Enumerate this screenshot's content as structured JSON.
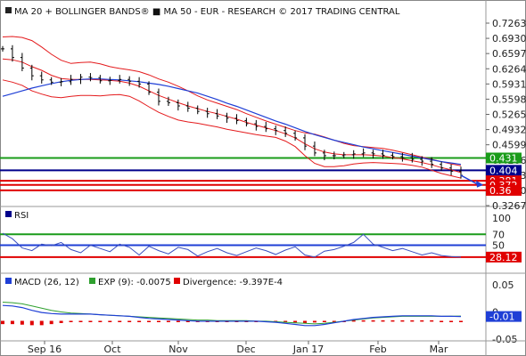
{
  "colors": {
    "price": "#000000",
    "bollinger": "#e41a1c",
    "ma50": "#1f3fd6",
    "resistance": "#1a9c1a",
    "pivot": "#00008b",
    "support": "#e00000",
    "rsi": "#3a4fbf",
    "macd": "#1f3fd6",
    "signal": "#2fa02f",
    "divergence": "#e00000",
    "arrow": "#1f3fd6"
  },
  "header": {
    "main_legend": "MA 20 + BOLLINGER BANDS®  ■ MA 50 - EUR - RESEARCH © 2017 TRADING CENTRAL",
    "rsi_legend": "RSI",
    "macd_legend": "MACD (26, 12)",
    "exp_legend": "EXP (9): -0.0075",
    "div_legend": "Divergence: -9.397E-4"
  },
  "chart_data": [
    {
      "type": "line",
      "panel": "price",
      "y_ticks": [
        "0.7263",
        "0.6930",
        "0.6597",
        "0.6264",
        "0.5931",
        "0.5598",
        "0.5265",
        "0.4932",
        "0.4599",
        "0.4266",
        "0.3933",
        "0.3600",
        "0.3267"
      ],
      "x_ticks": [
        "Sep 16",
        "Oct",
        "Nov",
        "Dec",
        "Jan 17",
        "Feb",
        "Mar"
      ],
      "ylim": [
        0.3267,
        0.7263
      ],
      "levels": [
        {
          "label": "0.431",
          "value": 0.431,
          "role": "resistance"
        },
        {
          "label": "0.404",
          "value": 0.404,
          "role": "pivot"
        },
        {
          "label": "0.381",
          "value": 0.381,
          "role": "support"
        },
        {
          "label": "0.372",
          "value": 0.372,
          "role": "support"
        },
        {
          "label": "0.36",
          "value": 0.36,
          "role": "support"
        }
      ],
      "series": [
        {
          "role": "close",
          "values": [
            0.67,
            0.651,
            0.628,
            0.611,
            0.602,
            0.597,
            0.598,
            0.603,
            0.608,
            0.607,
            0.6,
            0.601,
            0.603,
            0.599,
            0.593,
            0.575,
            0.555,
            0.552,
            0.545,
            0.54,
            0.533,
            0.528,
            0.523,
            0.518,
            0.513,
            0.506,
            0.5,
            0.495,
            0.491,
            0.485,
            0.475,
            0.457,
            0.442,
            0.436,
            0.436,
            0.438,
            0.44,
            0.442,
            0.44,
            0.437,
            0.434,
            0.432,
            0.428,
            0.424,
            0.417,
            0.409,
            0.402,
            0.393
          ]
        },
        {
          "role": "ma20",
          "values": [
            0.648,
            0.646,
            0.641,
            0.631,
            0.623,
            0.612,
            0.605,
            0.603,
            0.603,
            0.603,
            0.602,
            0.601,
            0.599,
            0.595,
            0.588,
            0.578,
            0.568,
            0.56,
            0.552,
            0.545,
            0.539,
            0.533,
            0.528,
            0.522,
            0.516,
            0.509,
            0.503,
            0.497,
            0.491,
            0.484,
            0.475,
            0.462,
            0.451,
            0.444,
            0.44,
            0.438,
            0.438,
            0.438,
            0.437,
            0.435,
            0.432,
            0.429,
            0.425,
            0.421,
            0.416,
            0.41,
            0.405,
            0.399
          ]
        },
        {
          "role": "bb_upper",
          "values": [
            0.696,
            0.697,
            0.695,
            0.688,
            0.674,
            0.658,
            0.645,
            0.638,
            0.64,
            0.641,
            0.637,
            0.631,
            0.627,
            0.624,
            0.62,
            0.613,
            0.604,
            0.597,
            0.588,
            0.578,
            0.567,
            0.558,
            0.551,
            0.544,
            0.537,
            0.528,
            0.52,
            0.512,
            0.505,
            0.498,
            0.491,
            0.486,
            0.483,
            0.477,
            0.47,
            0.463,
            0.458,
            0.456,
            0.454,
            0.452,
            0.448,
            0.443,
            0.438,
            0.433,
            0.428,
            0.423,
            0.418,
            0.414
          ]
        },
        {
          "role": "bb_lower",
          "values": [
            0.602,
            0.597,
            0.59,
            0.578,
            0.571,
            0.565,
            0.563,
            0.566,
            0.568,
            0.568,
            0.567,
            0.569,
            0.57,
            0.566,
            0.556,
            0.543,
            0.531,
            0.522,
            0.514,
            0.51,
            0.507,
            0.503,
            0.499,
            0.494,
            0.49,
            0.486,
            0.482,
            0.479,
            0.476,
            0.468,
            0.456,
            0.436,
            0.419,
            0.412,
            0.412,
            0.414,
            0.418,
            0.42,
            0.421,
            0.42,
            0.419,
            0.418,
            0.415,
            0.411,
            0.404,
            0.397,
            0.392,
            0.387
          ]
        },
        {
          "role": "ma50",
          "values": [
            0.566,
            0.572,
            0.578,
            0.584,
            0.589,
            0.594,
            0.598,
            0.601,
            0.603,
            0.604,
            0.604,
            0.603,
            0.602,
            0.6,
            0.598,
            0.595,
            0.592,
            0.588,
            0.583,
            0.578,
            0.573,
            0.566,
            0.559,
            0.551,
            0.544,
            0.536,
            0.528,
            0.52,
            0.512,
            0.505,
            0.497,
            0.489,
            0.482,
            0.476,
            0.47,
            0.465,
            0.46,
            0.455,
            0.451,
            0.447,
            0.443,
            0.439,
            0.435,
            0.431,
            0.427,
            0.423,
            0.42,
            0.417
          ]
        }
      ]
    },
    {
      "type": "line",
      "panel": "rsi",
      "y_ticks": [
        "100",
        "70",
        "50",
        "28.12"
      ],
      "ylim": [
        0,
        100
      ],
      "levels": [
        {
          "label": "70",
          "value": 70,
          "role": "overbought"
        },
        {
          "label": "50",
          "value": 50,
          "role": "mid"
        },
        {
          "label": "28.12",
          "value": 28.12,
          "role": "current"
        }
      ],
      "series": [
        {
          "role": "rsi",
          "values": [
            72,
            62,
            45,
            40,
            52,
            49,
            55,
            42,
            36,
            50,
            44,
            38,
            52,
            46,
            32,
            48,
            40,
            34,
            46,
            42,
            30,
            38,
            44,
            36,
            31,
            38,
            45,
            40,
            33,
            41,
            47,
            32,
            28,
            39,
            42,
            48,
            55,
            70,
            52,
            46,
            40,
            44,
            38,
            32,
            36,
            31,
            29,
            28
          ]
        }
      ]
    },
    {
      "type": "line",
      "panel": "macd",
      "y_ticks": [
        "0.05",
        "0",
        "-0.01",
        "-0.05"
      ],
      "ylim": [
        -0.05,
        0.05
      ],
      "levels": [
        {
          "label": "-0.01",
          "value": -0.0084,
          "role": "current"
        }
      ],
      "series": [
        {
          "role": "macd",
          "values": [
            0.012,
            0.011,
            0.008,
            0.003,
            -0.001,
            -0.003,
            -0.004,
            -0.004,
            -0.004,
            -0.004,
            -0.005,
            -0.006,
            -0.007,
            -0.008,
            -0.01,
            -0.012,
            -0.013,
            -0.014,
            -0.015,
            -0.016,
            -0.017,
            -0.017,
            -0.017,
            -0.017,
            -0.017,
            -0.017,
            -0.017,
            -0.018,
            -0.019,
            -0.021,
            -0.023,
            -0.025,
            -0.025,
            -0.023,
            -0.02,
            -0.017,
            -0.014,
            -0.012,
            -0.01,
            -0.009,
            -0.008,
            -0.007,
            -0.007,
            -0.007,
            -0.007,
            -0.008,
            -0.008,
            -0.0084
          ]
        },
        {
          "role": "signal",
          "values": [
            0.018,
            0.017,
            0.015,
            0.011,
            0.007,
            0.003,
            0.0,
            -0.002,
            -0.003,
            -0.004,
            -0.005,
            -0.006,
            -0.007,
            -0.008,
            -0.009,
            -0.01,
            -0.011,
            -0.012,
            -0.013,
            -0.014,
            -0.015,
            -0.015,
            -0.016,
            -0.016,
            -0.016,
            -0.016,
            -0.017,
            -0.017,
            -0.018,
            -0.019,
            -0.02,
            -0.021,
            -0.022,
            -0.021,
            -0.019,
            -0.017,
            -0.015,
            -0.013,
            -0.011,
            -0.01,
            -0.009,
            -0.008,
            -0.008,
            -0.008,
            -0.008,
            -0.008,
            -0.0078,
            -0.0075
          ]
        },
        {
          "role": "divergence",
          "values": [
            -0.006,
            -0.006,
            -0.007,
            -0.008,
            -0.008,
            -0.006,
            -0.004,
            -0.002,
            -0.001,
            0.0,
            0.0,
            0.0,
            0.0,
            0.0,
            -0.001,
            -0.002,
            -0.002,
            -0.002,
            -0.002,
            -0.002,
            -0.002,
            -0.002,
            -0.001,
            -0.001,
            -0.001,
            -0.001,
            0.0,
            -0.001,
            -0.001,
            -0.002,
            -0.003,
            -0.004,
            -0.003,
            -0.002,
            -0.001,
            0.0,
            0.001,
            0.001,
            0.001,
            0.001,
            0.001,
            0.001,
            0.001,
            0.001,
            0.001,
            0.0,
            0.0,
            -0.0009
          ]
        }
      ]
    }
  ]
}
